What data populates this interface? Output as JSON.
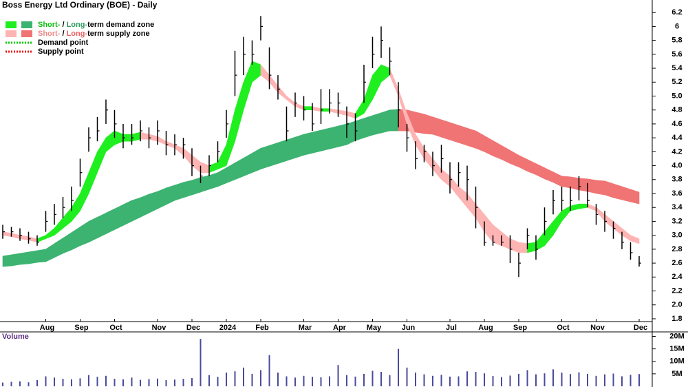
{
  "chart_data": [
    {
      "type": "price-zones",
      "title": "Boss Energy Ltd Ordinary (BOE) - Daily",
      "categories": [
        null,
        null,
        null,
        null,
        null,
        "Aug",
        null,
        null,
        null,
        "Sep",
        null,
        null,
        null,
        "Oct",
        null,
        null,
        null,
        null,
        "Nov",
        null,
        null,
        null,
        "Dec",
        null,
        null,
        null,
        "2024",
        null,
        null,
        null,
        "Feb",
        null,
        null,
        null,
        null,
        "Mar",
        null,
        null,
        null,
        "Apr",
        null,
        null,
        null,
        "May",
        null,
        null,
        null,
        "Jun",
        null,
        null,
        null,
        null,
        "Jul",
        null,
        null,
        null,
        "Aug",
        null,
        null,
        null,
        "Sep",
        null,
        null,
        null,
        null,
        "Oct",
        null,
        null,
        null,
        "Nov",
        null,
        null,
        null,
        null,
        "Dec"
      ],
      "close": [
        3.05,
        3.05,
        3.0,
        2.95,
        2.9,
        3.2,
        3.3,
        3.4,
        3.5,
        3.9,
        4.4,
        4.5,
        4.8,
        4.6,
        4.4,
        4.4,
        4.5,
        4.4,
        4.5,
        4.3,
        4.3,
        4.3,
        4.0,
        3.85,
        4.0,
        4.2,
        4.6,
        5.3,
        5.6,
        5.6,
        6.0,
        5.3,
        5.1,
        4.5,
        4.9,
        4.8,
        4.6,
        4.8,
        4.9,
        4.9,
        4.6,
        4.5,
        5.2,
        5.6,
        5.8,
        5.5,
        4.8,
        4.4,
        4.1,
        4.2,
        4.0,
        4.1,
        3.8,
        3.9,
        3.8,
        3.4,
        2.9,
        2.9,
        2.9,
        2.8,
        2.6,
        3.0,
        2.8,
        3.2,
        3.5,
        3.5,
        3.5,
        3.7,
        3.5,
        3.3,
        3.2,
        3.1,
        2.9,
        2.75,
        2.6
      ],
      "high": [
        3.15,
        3.12,
        3.1,
        3.05,
        3.0,
        3.35,
        3.45,
        3.55,
        3.7,
        4.1,
        4.55,
        4.7,
        4.95,
        4.8,
        4.6,
        4.6,
        4.65,
        4.55,
        4.65,
        4.5,
        4.45,
        4.4,
        4.25,
        4.0,
        4.15,
        4.35,
        4.8,
        5.65,
        5.85,
        5.8,
        6.15,
        5.7,
        5.3,
        4.85,
        5.05,
        5.0,
        4.9,
        5.1,
        5.1,
        5.05,
        4.85,
        4.75,
        5.45,
        5.85,
        6.0,
        5.7,
        5.2,
        4.6,
        4.35,
        4.3,
        4.2,
        4.3,
        4.05,
        4.05,
        4.0,
        3.7,
        3.2,
        3.0,
        3.0,
        3.0,
        2.75,
        3.1,
        3.0,
        3.4,
        3.65,
        3.7,
        3.7,
        3.85,
        3.75,
        3.45,
        3.35,
        3.2,
        3.05,
        2.9,
        2.7
      ],
      "low": [
        2.95,
        2.98,
        2.92,
        2.88,
        2.85,
        3.05,
        3.15,
        3.25,
        3.35,
        3.7,
        4.2,
        4.35,
        4.6,
        4.4,
        4.25,
        4.3,
        4.35,
        4.25,
        4.3,
        4.15,
        4.15,
        4.1,
        3.85,
        3.75,
        3.85,
        4.05,
        4.4,
        5.0,
        5.3,
        5.45,
        5.8,
        5.1,
        4.95,
        4.35,
        4.7,
        4.65,
        4.5,
        4.6,
        4.75,
        4.7,
        4.4,
        4.35,
        4.9,
        5.4,
        5.55,
        5.3,
        4.55,
        4.2,
        3.95,
        4.05,
        3.85,
        3.9,
        3.6,
        3.7,
        3.5,
        3.1,
        2.85,
        2.85,
        2.85,
        2.6,
        2.4,
        2.8,
        2.65,
        3.0,
        3.3,
        3.35,
        3.35,
        3.5,
        3.4,
        3.15,
        3.05,
        2.95,
        2.8,
        2.65,
        2.55
      ],
      "short_upper": [
        3.05,
        3.03,
        3.0,
        2.98,
        2.95,
        3.0,
        3.1,
        3.25,
        3.4,
        3.6,
        3.9,
        4.2,
        4.4,
        4.5,
        4.45,
        4.45,
        4.48,
        4.45,
        4.42,
        4.35,
        4.3,
        4.25,
        4.15,
        4.05,
        4.0,
        4.05,
        4.3,
        4.8,
        5.2,
        5.5,
        5.45,
        5.3,
        5.15,
        5.0,
        4.9,
        4.85,
        4.85,
        4.82,
        4.82,
        4.8,
        4.78,
        4.75,
        4.95,
        5.3,
        5.45,
        5.4,
        5.1,
        4.75,
        4.45,
        4.25,
        4.1,
        3.95,
        3.85,
        3.7,
        3.6,
        3.45,
        3.3,
        3.15,
        3.05,
        2.95,
        2.9,
        2.88,
        2.9,
        3.05,
        3.2,
        3.35,
        3.42,
        3.45,
        3.45,
        3.4,
        3.3,
        3.2,
        3.1,
        3.0,
        2.95
      ],
      "short_lower": [
        3.0,
        2.98,
        2.95,
        2.93,
        2.9,
        2.95,
        3.0,
        3.1,
        3.2,
        3.35,
        3.6,
        3.9,
        4.2,
        4.3,
        4.35,
        4.35,
        4.38,
        4.38,
        4.35,
        4.3,
        4.25,
        4.15,
        4.0,
        3.9,
        3.9,
        3.95,
        4.0,
        4.35,
        4.8,
        5.2,
        5.3,
        5.2,
        5.05,
        4.95,
        4.85,
        4.8,
        4.8,
        4.78,
        4.78,
        4.75,
        4.72,
        4.68,
        4.75,
        4.95,
        5.2,
        5.3,
        5.0,
        4.6,
        4.3,
        4.1,
        3.95,
        3.8,
        3.7,
        3.55,
        3.4,
        3.25,
        3.05,
        2.9,
        2.85,
        2.8,
        2.75,
        2.75,
        2.78,
        2.85,
        3.0,
        3.2,
        3.35,
        3.38,
        3.4,
        3.35,
        3.2,
        3.1,
        3.0,
        2.92,
        2.88
      ],
      "long_upper": [
        2.7,
        2.72,
        2.74,
        2.76,
        2.78,
        2.8,
        2.88,
        2.96,
        3.04,
        3.12,
        3.2,
        3.26,
        3.32,
        3.38,
        3.44,
        3.5,
        3.54,
        3.59,
        3.63,
        3.68,
        3.72,
        3.76,
        3.79,
        3.83,
        3.86,
        3.9,
        3.97,
        4.04,
        4.11,
        4.18,
        4.25,
        4.29,
        4.33,
        4.37,
        4.41,
        4.45,
        4.48,
        4.51,
        4.54,
        4.57,
        4.6,
        4.64,
        4.68,
        4.72,
        4.76,
        4.8,
        4.81,
        4.8,
        4.77,
        4.74,
        4.7,
        4.66,
        4.62,
        4.58,
        4.54,
        4.5,
        4.43,
        4.36,
        4.29,
        4.22,
        4.15,
        4.09,
        4.03,
        3.97,
        3.91,
        3.85,
        3.84,
        3.82,
        3.81,
        3.79,
        3.78,
        3.74,
        3.7,
        3.66,
        3.62
      ],
      "long_lower": [
        2.55,
        2.56,
        2.58,
        2.59,
        2.61,
        2.62,
        2.68,
        2.74,
        2.79,
        2.85,
        2.9,
        2.96,
        3.02,
        3.08,
        3.14,
        3.2,
        3.26,
        3.32,
        3.38,
        3.44,
        3.5,
        3.54,
        3.58,
        3.62,
        3.66,
        3.7,
        3.75,
        3.8,
        3.85,
        3.9,
        3.95,
        3.99,
        4.03,
        4.07,
        4.11,
        4.15,
        4.18,
        4.21,
        4.24,
        4.27,
        4.3,
        4.36,
        4.4,
        4.44,
        4.47,
        4.5,
        4.5,
        4.5,
        4.48,
        4.46,
        4.45,
        4.41,
        4.37,
        4.33,
        4.29,
        4.25,
        4.2,
        4.14,
        4.09,
        4.03,
        3.98,
        3.92,
        3.87,
        3.81,
        3.76,
        3.7,
        3.68,
        3.65,
        3.63,
        3.6,
        3.58,
        3.54,
        3.51,
        3.48,
        3.45
      ],
      "bar_color": "#000000",
      "zone_colors": {
        "short_demand": "#1fef1f",
        "long_demand": "#3cb371",
        "short_supply": "#ffb4b4",
        "long_supply": "#f07474"
      },
      "ylim": [
        1.76,
        6.38
      ],
      "yticks": [
        {
          "value": 6.2,
          "label": "6.2"
        },
        6,
        5.8,
        5.6,
        5.4,
        5.2,
        {
          "value": 5,
          "label": "5.0"
        },
        4.8,
        4.6,
        4.4,
        4.2,
        {
          "value": 4,
          "label": "4.0"
        },
        3.8,
        3.6,
        3.4,
        3.2,
        {
          "value": 3,
          "label": "3.0"
        },
        2.8,
        2.6,
        2.4,
        2.2,
        {
          "value": 2,
          "label": "2.0"
        },
        1.8
      ],
      "legend": [
        {
          "parts": [
            "Short-",
            " / ",
            "Long-",
            "term demand zone"
          ],
          "part_colors": [
            "#10c010",
            "#000000",
            "#2e9a5e",
            "#000000"
          ],
          "swatches": [
            "#1fef1f",
            "#3cb371"
          ]
        },
        {
          "parts": [
            "Short-",
            " / ",
            "Long-",
            "term supply zone"
          ],
          "part_colors": [
            "#f08a8a",
            "#000000",
            "#e86060",
            "#000000"
          ],
          "swatches": [
            "#ffb4b4",
            "#f07474"
          ]
        },
        {
          "parts": [
            "Demand point"
          ],
          "part_colors": [
            "#000000"
          ],
          "line": "#00cc00"
        },
        {
          "parts": [
            "Supply point"
          ],
          "part_colors": [
            "#000000"
          ],
          "line": "#ee1111"
        }
      ]
    },
    {
      "type": "bar",
      "title": "Volume",
      "values": [
        1500000,
        1800000,
        2000000,
        1600000,
        2500000,
        4000000,
        3500000,
        3000000,
        2800000,
        3200000,
        4500000,
        3800000,
        4200000,
        3000000,
        2800000,
        3500000,
        2600000,
        2900000,
        3100000,
        2500000,
        2700000,
        3000000,
        3300000,
        19000000,
        4500000,
        3800000,
        5500000,
        6000000,
        7500000,
        5000000,
        6500000,
        12500000,
        5500000,
        4000000,
        3500000,
        4200000,
        3800000,
        3600000,
        4000000,
        8500000,
        4500000,
        3900000,
        5000000,
        6200000,
        5800000,
        4500000,
        15000000,
        7500000,
        5500000,
        4800000,
        4200000,
        4600000,
        3900000,
        4000000,
        6000000,
        5800000,
        5200000,
        4100000,
        3700000,
        4300000,
        5000000,
        6500000,
        4800000,
        5200000,
        6800000,
        5500000,
        4900000,
        5600000,
        5000000,
        4200000,
        4800000,
        5100000,
        4000000,
        4600000,
        4900000
      ],
      "color": "#4a4a9c",
      "ylim": [
        0,
        21800000
      ],
      "yticks": [
        {
          "value": 20000000,
          "label": "20M"
        },
        {
          "value": 15000000,
          "label": "15M"
        },
        {
          "value": 10000000,
          "label": "10M"
        },
        {
          "value": 5000000,
          "label": "5M"
        }
      ]
    }
  ]
}
